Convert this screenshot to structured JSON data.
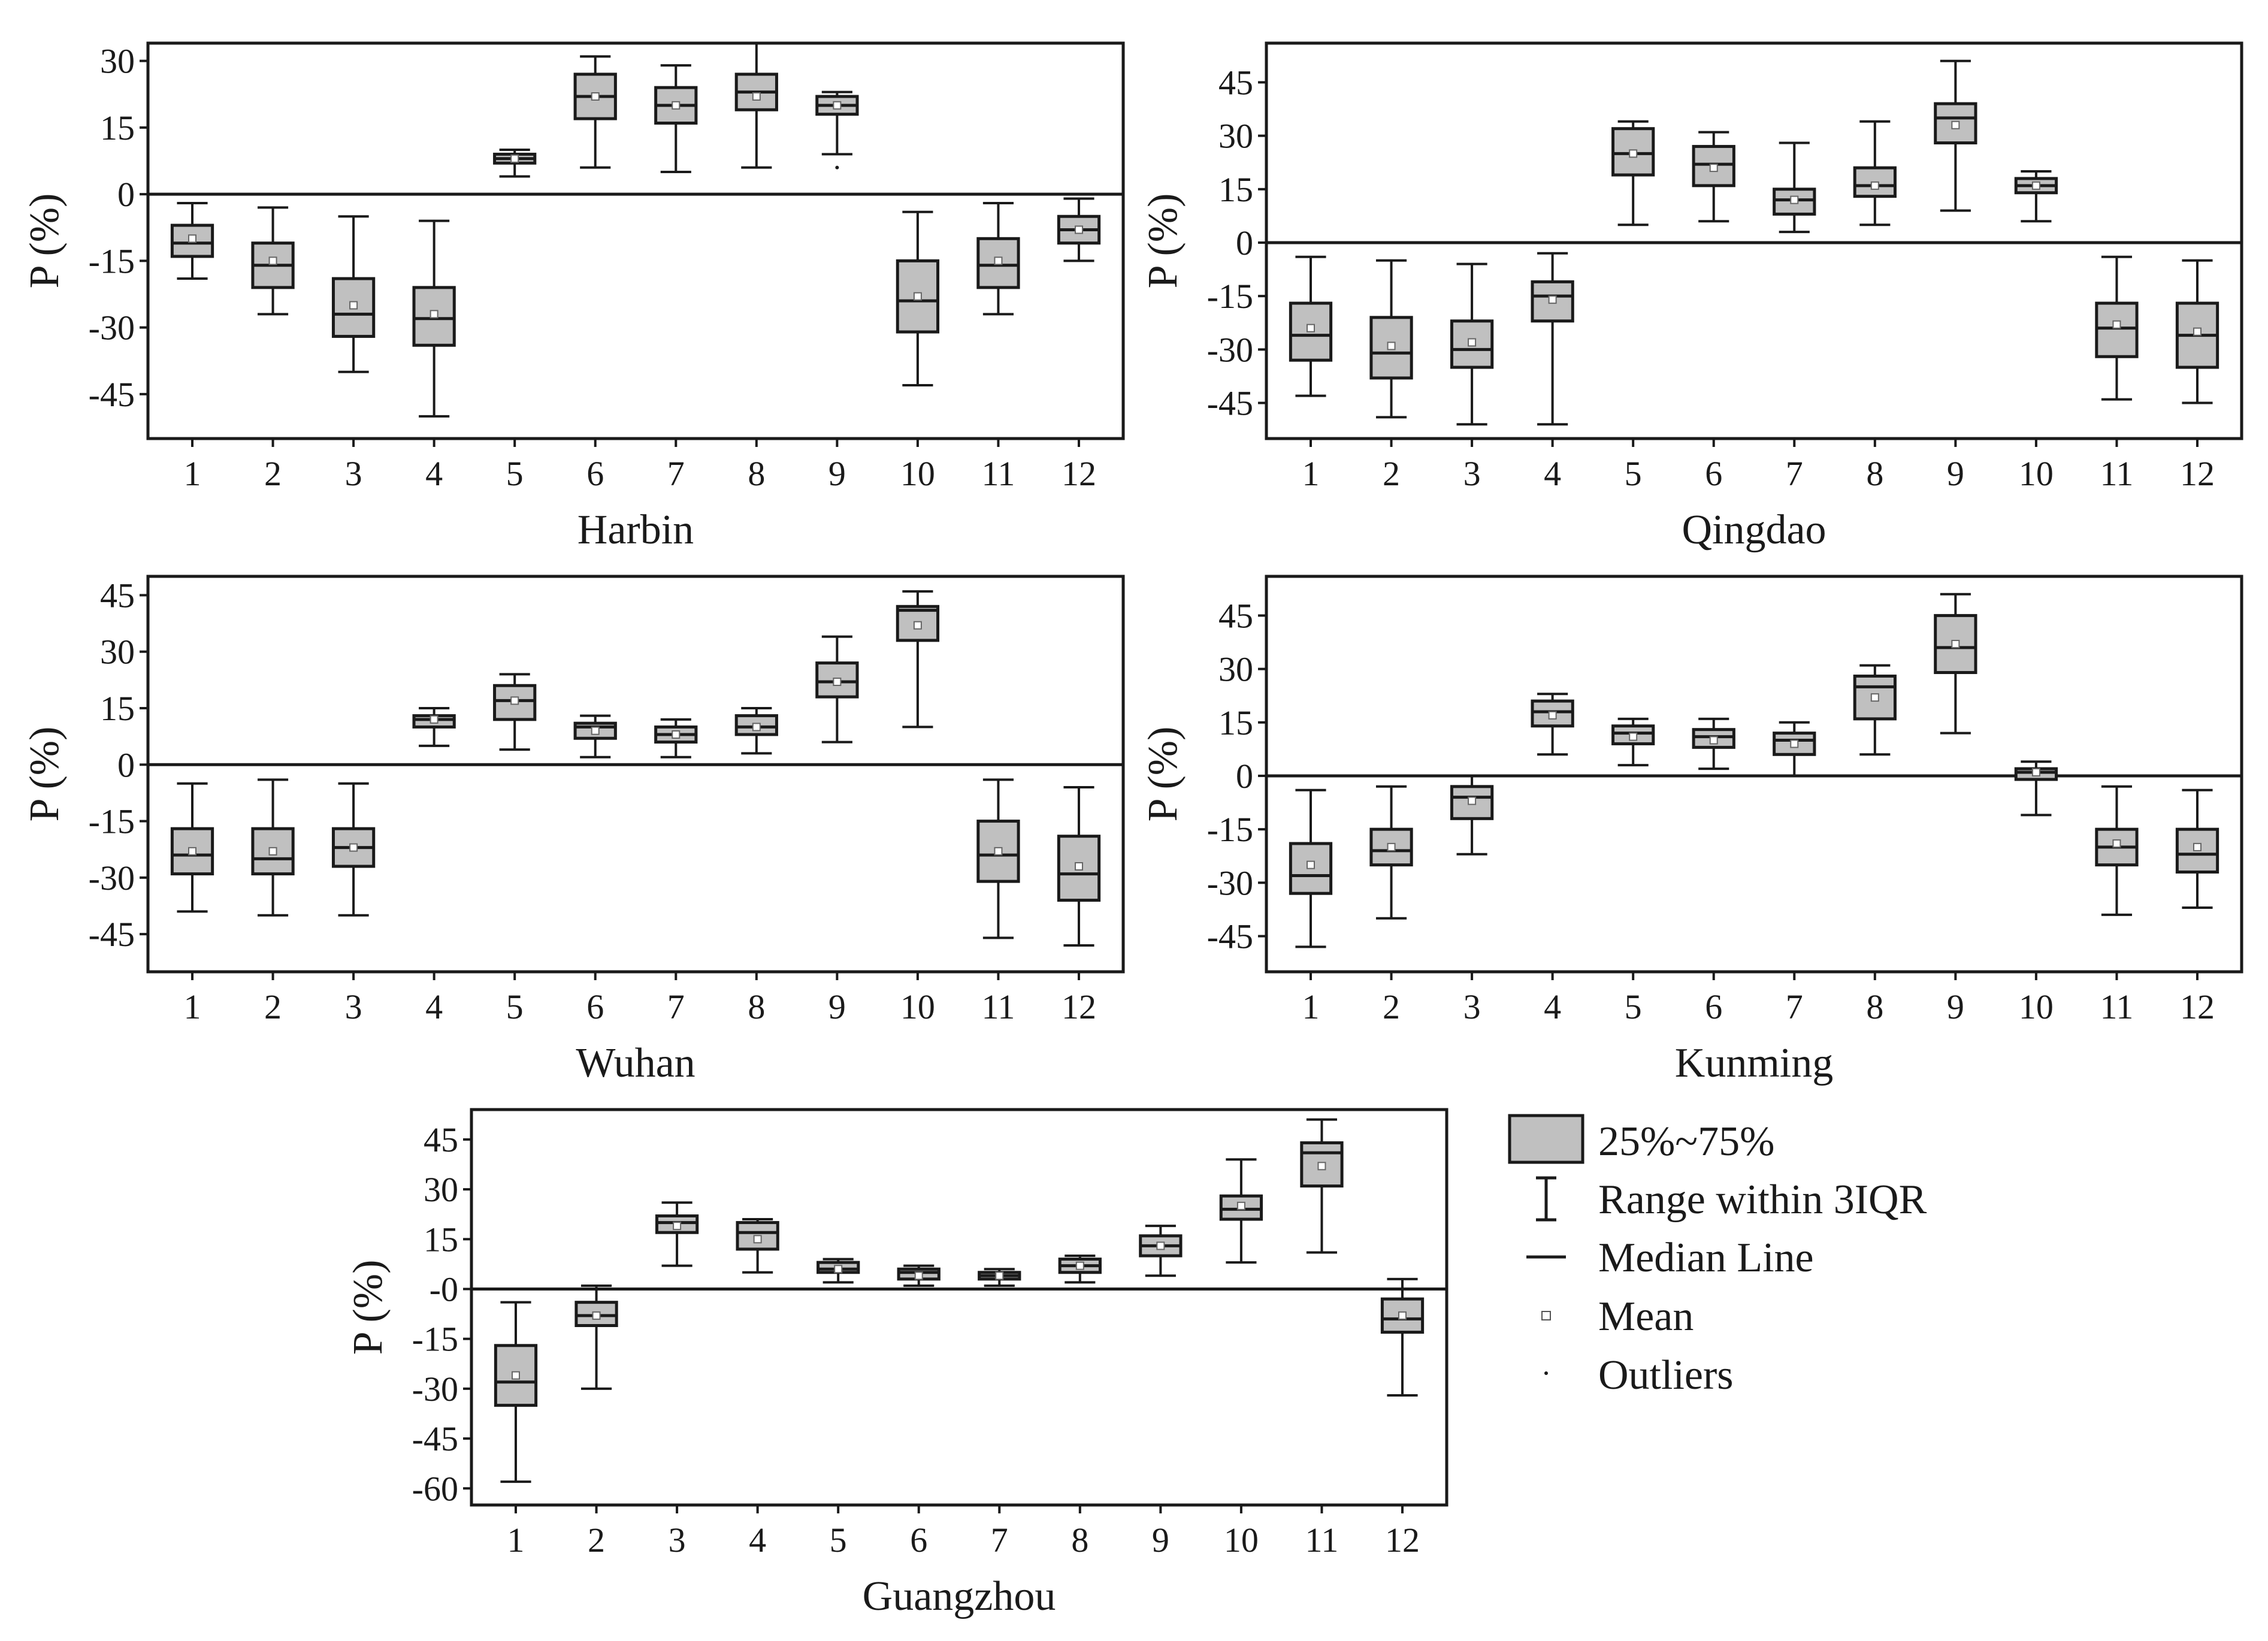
{
  "legend": {
    "box": "25%~75%",
    "whisker": "Range within 3IQR",
    "median": "Median Line",
    "mean": "Mean",
    "outliers": "Outliers"
  },
  "colors": {
    "box_fill": "#c0c0c0",
    "stroke": "#1a1a1a",
    "mean_marker": "#ffffff"
  },
  "chart_data": [
    {
      "type": "box",
      "title": "Harbin",
      "xlabel": "Harbin",
      "ylabel": "P (%)",
      "categories": [
        "1",
        "2",
        "3",
        "4",
        "5",
        "6",
        "7",
        "8",
        "9",
        "10",
        "11",
        "12"
      ],
      "yticks": [
        30,
        15,
        0,
        -15,
        -30,
        -45
      ],
      "ytick_labels": [
        "30",
        "15",
        "0",
        "-15",
        "-30",
        "-45"
      ],
      "ylim": [
        -55,
        34
      ],
      "boxes": [
        {
          "min": -19,
          "q1": -14,
          "median": -11,
          "q3": -7,
          "max": -2,
          "mean": -10
        },
        {
          "min": -27,
          "q1": -21,
          "median": -16,
          "q3": -11,
          "max": -3,
          "mean": -15
        },
        {
          "min": -40,
          "q1": -32,
          "median": -27,
          "q3": -19,
          "max": -5,
          "mean": -25
        },
        {
          "min": -50,
          "q1": -34,
          "median": -28,
          "q3": -21,
          "max": -6,
          "mean": -27
        },
        {
          "min": 4,
          "q1": 7,
          "median": 8,
          "q3": 9,
          "max": 10,
          "mean": 8
        },
        {
          "min": 6,
          "q1": 17,
          "median": 22,
          "q3": 27,
          "max": 31,
          "mean": 22
        },
        {
          "min": 5,
          "q1": 16,
          "median": 20,
          "q3": 24,
          "max": 29,
          "mean": 20
        },
        {
          "min": 6,
          "q1": 19,
          "median": 23,
          "q3": 27,
          "max": 34,
          "mean": 22
        },
        {
          "min": 9,
          "q1": 18,
          "median": 20,
          "q3": 22,
          "max": 23,
          "mean": 20,
          "outliers": [
            6
          ]
        },
        {
          "min": -43,
          "q1": -31,
          "median": -24,
          "q3": -15,
          "max": -4,
          "mean": -23
        },
        {
          "min": -27,
          "q1": -21,
          "median": -16,
          "q3": -10,
          "max": -2,
          "mean": -15
        },
        {
          "min": -15,
          "q1": -11,
          "median": -8,
          "q3": -5,
          "max": -1,
          "mean": -8
        }
      ]
    },
    {
      "type": "box",
      "title": "Qingdao",
      "xlabel": "Qingdao",
      "ylabel": "P (%)",
      "categories": [
        "1",
        "2",
        "3",
        "4",
        "5",
        "6",
        "7",
        "8",
        "9",
        "10",
        "11",
        "12"
      ],
      "yticks": [
        45,
        30,
        15,
        0,
        -15,
        -30,
        -45
      ],
      "ytick_labels": [
        "45",
        "30",
        "15",
        "0",
        "-15",
        "-30",
        "-45"
      ],
      "ylim": [
        -55,
        56
      ],
      "boxes": [
        {
          "min": -43,
          "q1": -33,
          "median": -26,
          "q3": -17,
          "max": -4,
          "mean": -24
        },
        {
          "min": -49,
          "q1": -38,
          "median": -31,
          "q3": -21,
          "max": -5,
          "mean": -29
        },
        {
          "min": -51,
          "q1": -35,
          "median": -30,
          "q3": -22,
          "max": -6,
          "mean": -28
        },
        {
          "min": -51,
          "q1": -22,
          "median": -15,
          "q3": -11,
          "max": -3,
          "mean": -16
        },
        {
          "min": 5,
          "q1": 19,
          "median": 25,
          "q3": 32,
          "max": 34,
          "mean": 25
        },
        {
          "min": 6,
          "q1": 16,
          "median": 22,
          "q3": 27,
          "max": 31,
          "mean": 21
        },
        {
          "min": 3,
          "q1": 8,
          "median": 12,
          "q3": 15,
          "max": 28,
          "mean": 12
        },
        {
          "min": 5,
          "q1": 13,
          "median": 16,
          "q3": 21,
          "max": 34,
          "mean": 16
        },
        {
          "min": 9,
          "q1": 28,
          "median": 35,
          "q3": 39,
          "max": 51,
          "mean": 33
        },
        {
          "min": 6,
          "q1": 14,
          "median": 16,
          "q3": 18,
          "max": 20,
          "mean": 16
        },
        {
          "min": -44,
          "q1": -32,
          "median": -24,
          "q3": -17,
          "max": -4,
          "mean": -23
        },
        {
          "min": -45,
          "q1": -35,
          "median": -26,
          "q3": -17,
          "max": -5,
          "mean": -25
        }
      ]
    },
    {
      "type": "box",
      "title": "Wuhan",
      "xlabel": "Wuhan",
      "ylabel": "P (%)",
      "categories": [
        "1",
        "2",
        "3",
        "4",
        "5",
        "6",
        "7",
        "8",
        "9",
        "10",
        "11",
        "12"
      ],
      "yticks": [
        45,
        30,
        15,
        0,
        -15,
        -30,
        -45
      ],
      "ytick_labels": [
        "45",
        "30",
        "15",
        "0",
        "-15",
        "-30",
        "-45"
      ],
      "ylim": [
        -55,
        50
      ],
      "boxes": [
        {
          "min": -39,
          "q1": -29,
          "median": -24,
          "q3": -17,
          "max": -5,
          "mean": -23
        },
        {
          "min": -40,
          "q1": -29,
          "median": -25,
          "q3": -17,
          "max": -4,
          "mean": -23
        },
        {
          "min": -40,
          "q1": -27,
          "median": -22,
          "q3": -17,
          "max": -5,
          "mean": -22
        },
        {
          "min": 5,
          "q1": 10,
          "median": 12,
          "q3": 13,
          "max": 15,
          "mean": 12
        },
        {
          "min": 4,
          "q1": 12,
          "median": 17,
          "q3": 21,
          "max": 24,
          "mean": 17
        },
        {
          "min": 2,
          "q1": 7,
          "median": 10,
          "q3": 11,
          "max": 13,
          "mean": 9
        },
        {
          "min": 2,
          "q1": 6,
          "median": 8,
          "q3": 10,
          "max": 12,
          "mean": 8
        },
        {
          "min": 3,
          "q1": 8,
          "median": 10,
          "q3": 13,
          "max": 15,
          "mean": 10
        },
        {
          "min": 6,
          "q1": 18,
          "median": 22,
          "q3": 27,
          "max": 34,
          "mean": 22
        },
        {
          "min": 10,
          "q1": 33,
          "median": 41,
          "q3": 42,
          "max": 46,
          "mean": 37
        },
        {
          "min": -46,
          "q1": -31,
          "median": -24,
          "q3": -15,
          "max": -4,
          "mean": -23
        },
        {
          "min": -48,
          "q1": -36,
          "median": -29,
          "q3": -19,
          "max": -6,
          "mean": -27
        }
      ]
    },
    {
      "type": "box",
      "title": "Kunming",
      "xlabel": "Kunming",
      "ylabel": "P (%)",
      "categories": [
        "1",
        "2",
        "3",
        "4",
        "5",
        "6",
        "7",
        "8",
        "9",
        "10",
        "11",
        "12"
      ],
      "yticks": [
        45,
        30,
        15,
        0,
        -15,
        -30,
        -45
      ],
      "ytick_labels": [
        "45",
        "30",
        "15",
        "0",
        "-15",
        "-30",
        "-45"
      ],
      "ylim": [
        -55,
        56
      ],
      "boxes": [
        {
          "min": -48,
          "q1": -33,
          "median": -28,
          "q3": -19,
          "max": -4,
          "mean": -25
        },
        {
          "min": -40,
          "q1": -25,
          "median": -21,
          "q3": -15,
          "max": -3,
          "mean": -20
        },
        {
          "min": -22,
          "q1": -12,
          "median": -6,
          "q3": -3,
          "max": 0,
          "mean": -7
        },
        {
          "min": 6,
          "q1": 14,
          "median": 18,
          "q3": 21,
          "max": 23,
          "mean": 17
        },
        {
          "min": 3,
          "q1": 9,
          "median": 12,
          "q3": 14,
          "max": 16,
          "mean": 11
        },
        {
          "min": 2,
          "q1": 8,
          "median": 11,
          "q3": 13,
          "max": 16,
          "mean": 10
        },
        {
          "min": 0,
          "q1": 6,
          "median": 10,
          "q3": 12,
          "max": 15,
          "mean": 9
        },
        {
          "min": 6,
          "q1": 16,
          "median": 25,
          "q3": 28,
          "max": 31,
          "mean": 22
        },
        {
          "min": 12,
          "q1": 29,
          "median": 36,
          "q3": 45,
          "max": 51,
          "mean": 37
        },
        {
          "min": -11,
          "q1": -1,
          "median": 1,
          "q3": 2,
          "max": 4,
          "mean": 1
        },
        {
          "min": -39,
          "q1": -25,
          "median": -20,
          "q3": -15,
          "max": -3,
          "mean": -19
        },
        {
          "min": -37,
          "q1": -27,
          "median": -22,
          "q3": -15,
          "max": -4,
          "mean": -20
        }
      ]
    },
    {
      "type": "box",
      "title": "Guangzhou",
      "xlabel": "Guangzhou",
      "ylabel": "P (%)",
      "categories": [
        "1",
        "2",
        "3",
        "4",
        "5",
        "6",
        "7",
        "8",
        "9",
        "10",
        "11",
        "12"
      ],
      "yticks": [
        45,
        30,
        15,
        0,
        -15,
        -30,
        -45,
        -60
      ],
      "ytick_labels": [
        "45",
        "30",
        "15",
        "-0",
        "-15",
        "-30",
        "-45",
        "-60"
      ],
      "ylim": [
        -65,
        54
      ],
      "boxes": [
        {
          "min": -58,
          "q1": -35,
          "median": -28,
          "q3": -17,
          "max": -4,
          "mean": -26
        },
        {
          "min": -30,
          "q1": -11,
          "median": -8,
          "q3": -4,
          "max": 1,
          "mean": -8
        },
        {
          "min": 7,
          "q1": 17,
          "median": 20,
          "q3": 22,
          "max": 26,
          "mean": 19
        },
        {
          "min": 5,
          "q1": 12,
          "median": 17,
          "q3": 20,
          "max": 21,
          "mean": 15
        },
        {
          "min": 2,
          "q1": 5,
          "median": 6,
          "q3": 8,
          "max": 9,
          "mean": 6
        },
        {
          "min": 1,
          "q1": 3,
          "median": 5,
          "q3": 6,
          "max": 7,
          "mean": 4
        },
        {
          "min": 1,
          "q1": 3,
          "median": 4,
          "q3": 5,
          "max": 6,
          "mean": 4
        },
        {
          "min": 2,
          "q1": 5,
          "median": 7,
          "q3": 9,
          "max": 10,
          "mean": 7
        },
        {
          "min": 4,
          "q1": 10,
          "median": 13,
          "q3": 16,
          "max": 19,
          "mean": 13
        },
        {
          "min": 8,
          "q1": 21,
          "median": 24,
          "q3": 28,
          "max": 39,
          "mean": 25
        },
        {
          "min": 11,
          "q1": 31,
          "median": 41,
          "q3": 44,
          "max": 51,
          "mean": 37
        },
        {
          "min": -32,
          "q1": -13,
          "median": -9,
          "q3": -3,
          "max": 3,
          "mean": -8
        }
      ]
    }
  ]
}
